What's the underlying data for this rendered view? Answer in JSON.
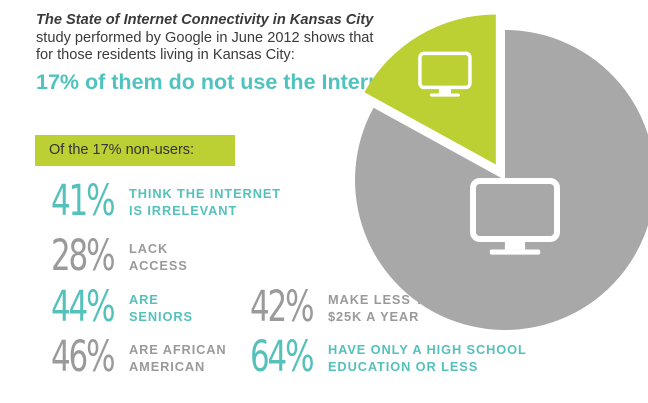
{
  "intro": {
    "title_italic": "The State of Internet Connectivity in Kansas City",
    "text": " study performed by Google in June 2012 shows that for those residents living in Kansas City:"
  },
  "headline": "17% of them do not use the Internet.",
  "label": "Of the 17% non-users:",
  "stats": [
    {
      "value": "41%",
      "line1": "THINK THE INTERNET",
      "line2": "IS IRRELEVANT",
      "color": "#55c1bb"
    },
    {
      "value": "28%",
      "line1": "LACK",
      "line2": "ACCESS",
      "color": "#9a9a9a"
    },
    {
      "value": "44%",
      "line1": "ARE",
      "line2": "SENIORS",
      "color": "#55c1bb"
    },
    {
      "value": "46%",
      "line1": "ARE AFRICAN",
      "line2": "AMERICAN",
      "color": "#9a9a9a"
    },
    {
      "value": "42%",
      "line1": "MAKE LESS THAN",
      "line2": "$25K A YEAR",
      "color": "#9a9a9a"
    },
    {
      "value": "64%",
      "line1": "HAVE ONLY A HIGH SCHOOL",
      "line2": "EDUCATION OR LESS",
      "color": "#55c1bb"
    }
  ],
  "colors": {
    "accent_green": "#bcd034",
    "teal": "#55c1bb",
    "gray": "#9a9a9a",
    "pie_gray": "#a8a8a8"
  },
  "chart_data": {
    "type": "pie",
    "slices": [
      {
        "label": "do not use the Internet",
        "value": 17,
        "color": "#bcd034",
        "exploded": true,
        "icon": "monitor-icon"
      },
      {
        "label": "use the Internet",
        "value": 83,
        "color": "#a8a8a8",
        "exploded": false,
        "icon": "monitor-icon"
      }
    ]
  }
}
